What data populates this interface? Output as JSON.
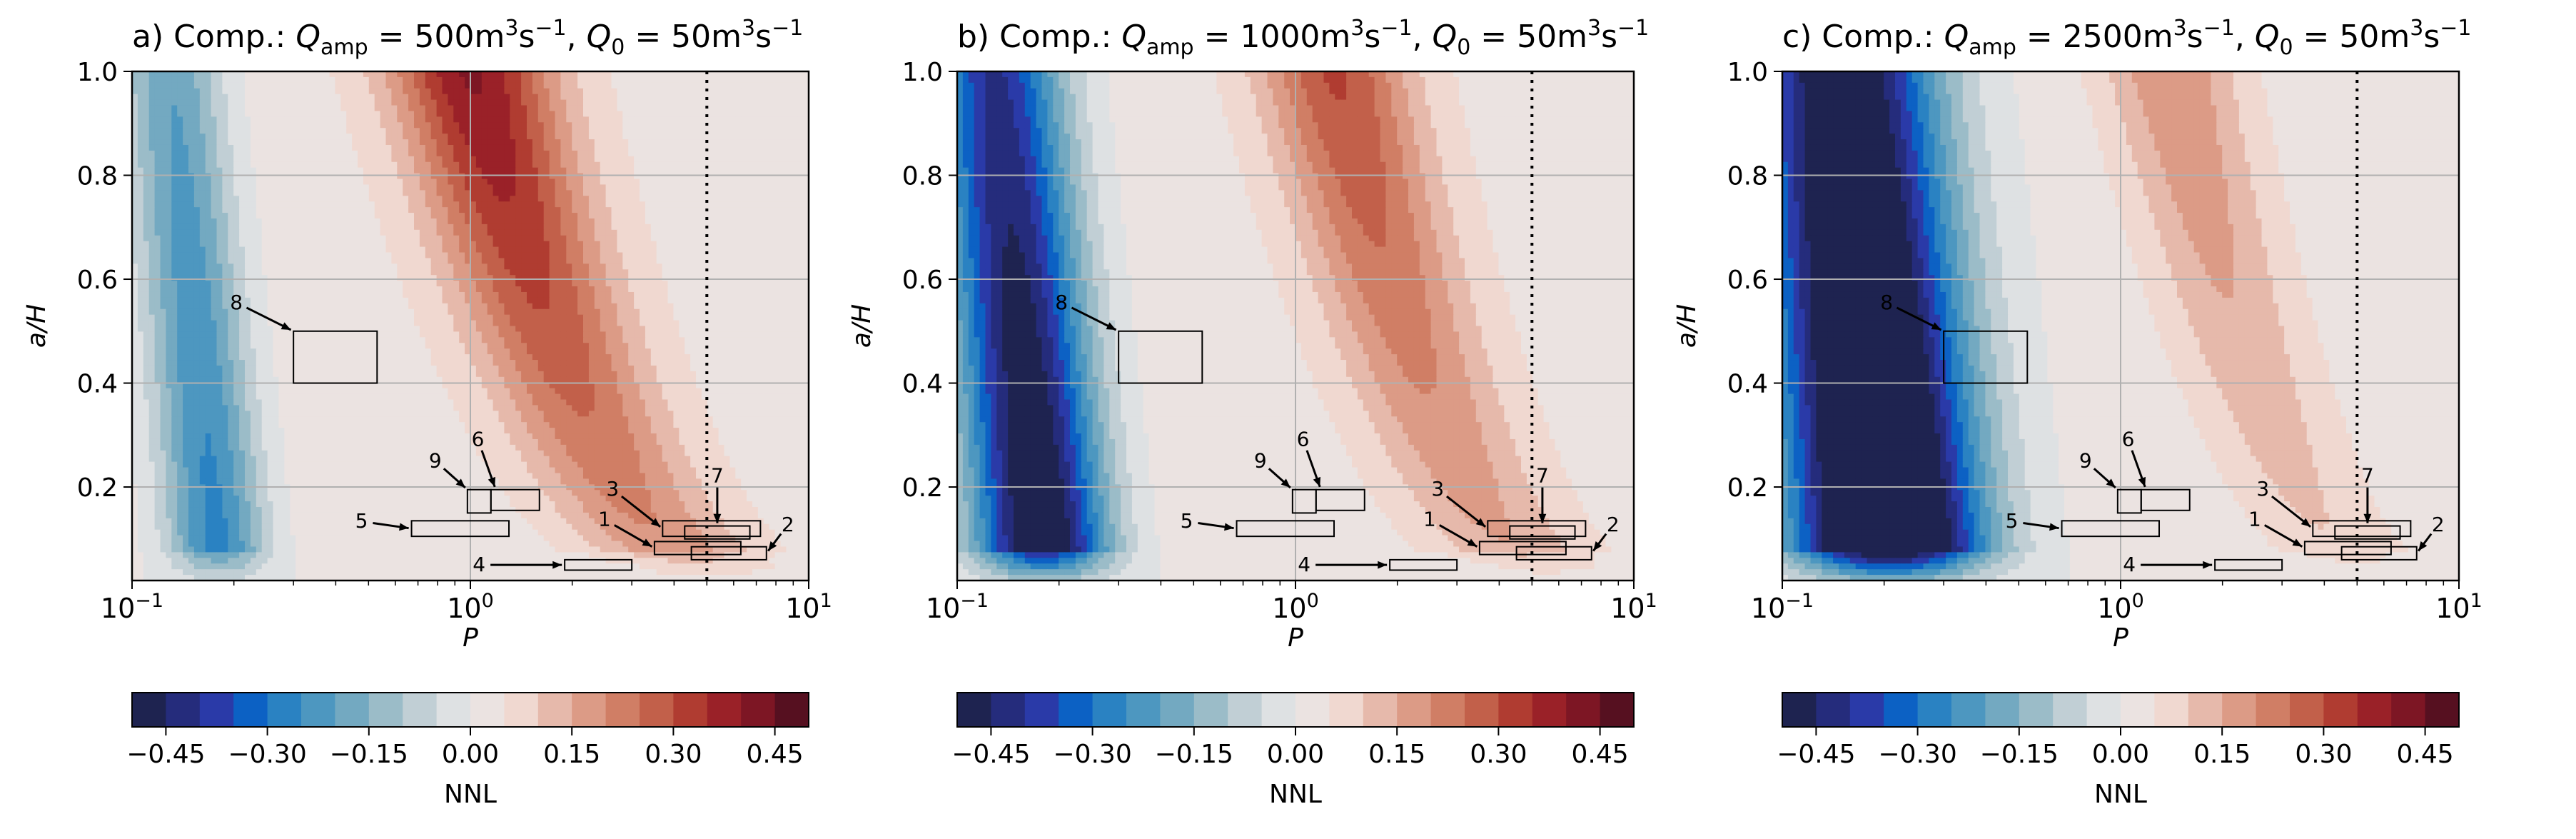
{
  "chart_data": [
    {
      "type": "contour",
      "title": {
        "prefix": "a) Comp.: ",
        "q_amp": "500",
        "q0": "50"
      },
      "xlabel": "P",
      "ylabel": "a/H",
      "x_scale": "log",
      "xlim": [
        0.1,
        10
      ],
      "ylim": [
        0.02,
        1.0
      ],
      "x_ticks": [
        0.1,
        1,
        10
      ],
      "y_ticks": [
        "0.2",
        "0.4",
        "0.6",
        "0.8",
        "1.0"
      ],
      "grid": true,
      "dotted_vline_x": 5.0,
      "field": {
        "neg_ridge_P": 0.13,
        "neg_amp": -0.3,
        "neg_width": 0.15,
        "pos_amp": 0.38,
        "pos_ridge_at_top": 1.0,
        "pos_ridge_at_bottom": 5.0,
        "pos_width": 0.24,
        "bg_pos": 0.03,
        "bottom_cut": 0.07
      },
      "boxes": [
        {
          "label": "1",
          "P": [
            3.5,
            6.3
          ],
          "aH": [
            0.07,
            0.095
          ]
        },
        {
          "label": "2",
          "P": [
            4.5,
            7.5
          ],
          "aH": [
            0.06,
            0.085
          ]
        },
        {
          "label": "3",
          "P": [
            3.7,
            7.2
          ],
          "aH": [
            0.105,
            0.135
          ]
        },
        {
          "label": "4",
          "P": [
            1.9,
            3.0
          ],
          "aH": [
            0.04,
            0.06
          ]
        },
        {
          "label": "5",
          "P": [
            0.67,
            1.3
          ],
          "aH": [
            0.105,
            0.135
          ]
        },
        {
          "label": "6",
          "P": [
            1.15,
            1.6
          ],
          "aH": [
            0.155,
            0.195
          ]
        },
        {
          "label": "7",
          "P": [
            4.3,
            6.7
          ],
          "aH": [
            0.1,
            0.125
          ]
        },
        {
          "label": "8",
          "P": [
            0.3,
            0.53
          ],
          "aH": [
            0.4,
            0.5
          ]
        },
        {
          "label": "9",
          "P": [
            0.98,
            1.15
          ],
          "aH": [
            0.15,
            0.195
          ]
        }
      ],
      "colorbar": {
        "label": "NNL",
        "ticks": [
          "−0.45",
          "−0.30",
          "−0.15",
          "0.00",
          "0.15",
          "0.30",
          "0.45"
        ]
      }
    },
    {
      "type": "contour",
      "title": {
        "prefix": "b) Comp.: ",
        "q_amp": "1000",
        "q0": "50"
      },
      "xlabel": "P",
      "ylabel": "a/H",
      "x_scale": "log",
      "xlim": [
        0.1,
        10
      ],
      "ylim": [
        0.02,
        1.0
      ],
      "x_ticks": [
        0.1,
        1,
        10
      ],
      "y_ticks": [
        "0.2",
        "0.4",
        "0.6",
        "0.8",
        "1.0"
      ],
      "grid": true,
      "dotted_vline_x": 5.0,
      "field": {
        "neg_ridge_P": 0.13,
        "neg_amp": -0.58,
        "neg_width": 0.2,
        "pos_amp": 0.28,
        "pos_ridge_at_top": 1.3,
        "pos_ridge_at_bottom": 5.5,
        "pos_width": 0.22,
        "bg_pos": 0.03,
        "bottom_cut": 0.07
      },
      "boxes": [
        {
          "label": "1",
          "P": [
            3.5,
            6.3
          ],
          "aH": [
            0.07,
            0.095
          ]
        },
        {
          "label": "2",
          "P": [
            4.5,
            7.5
          ],
          "aH": [
            0.06,
            0.085
          ]
        },
        {
          "label": "3",
          "P": [
            3.7,
            7.2
          ],
          "aH": [
            0.105,
            0.135
          ]
        },
        {
          "label": "4",
          "P": [
            1.9,
            3.0
          ],
          "aH": [
            0.04,
            0.06
          ]
        },
        {
          "label": "5",
          "P": [
            0.67,
            1.3
          ],
          "aH": [
            0.105,
            0.135
          ]
        },
        {
          "label": "6",
          "P": [
            1.15,
            1.6
          ],
          "aH": [
            0.155,
            0.195
          ]
        },
        {
          "label": "7",
          "P": [
            4.3,
            6.7
          ],
          "aH": [
            0.1,
            0.125
          ]
        },
        {
          "label": "8",
          "P": [
            0.3,
            0.53
          ],
          "aH": [
            0.4,
            0.5
          ]
        },
        {
          "label": "9",
          "P": [
            0.98,
            1.15
          ],
          "aH": [
            0.15,
            0.195
          ]
        }
      ],
      "colorbar": {
        "label": "NNL",
        "ticks": [
          "−0.45",
          "−0.30",
          "−0.15",
          "0.00",
          "0.15",
          "0.30",
          "0.45"
        ]
      }
    },
    {
      "type": "contour",
      "title": {
        "prefix": "c) Comp.: ",
        "q_amp": "2500",
        "q0": "50"
      },
      "xlabel": "P",
      "ylabel": "a/H",
      "x_scale": "log",
      "xlim": [
        0.1,
        10
      ],
      "ylim": [
        0.02,
        1.0
      ],
      "x_ticks": [
        0.1,
        1,
        10
      ],
      "y_ticks": [
        "0.2",
        "0.4",
        "0.6",
        "0.8",
        "1.0"
      ],
      "grid": true,
      "dotted_vline_x": 5.0,
      "field": {
        "neg_ridge_P": 0.15,
        "neg_amp": -0.75,
        "neg_width": 0.28,
        "pos_amp": 0.18,
        "pos_ridge_at_top": 1.4,
        "pos_ridge_at_bottom": 5.5,
        "pos_width": 0.2,
        "bg_pos": 0.02,
        "bottom_cut": 0.07
      },
      "boxes": [
        {
          "label": "1",
          "P": [
            3.5,
            6.3
          ],
          "aH": [
            0.07,
            0.095
          ]
        },
        {
          "label": "2",
          "P": [
            4.5,
            7.5
          ],
          "aH": [
            0.06,
            0.085
          ]
        },
        {
          "label": "3",
          "P": [
            3.7,
            7.2
          ],
          "aH": [
            0.105,
            0.135
          ]
        },
        {
          "label": "4",
          "P": [
            1.9,
            3.0
          ],
          "aH": [
            0.04,
            0.06
          ]
        },
        {
          "label": "5",
          "P": [
            0.67,
            1.3
          ],
          "aH": [
            0.105,
            0.135
          ]
        },
        {
          "label": "6",
          "P": [
            1.15,
            1.6
          ],
          "aH": [
            0.155,
            0.195
          ]
        },
        {
          "label": "7",
          "P": [
            4.3,
            6.7
          ],
          "aH": [
            0.1,
            0.125
          ]
        },
        {
          "label": "8",
          "P": [
            0.3,
            0.53
          ],
          "aH": [
            0.4,
            0.5
          ]
        },
        {
          "label": "9",
          "P": [
            0.98,
            1.15
          ],
          "aH": [
            0.15,
            0.195
          ]
        }
      ],
      "colorbar": {
        "label": "NNL",
        "ticks": [
          "−0.45",
          "−0.30",
          "−0.15",
          "0.00",
          "0.15",
          "0.30",
          "0.45"
        ]
      }
    }
  ],
  "colormap": {
    "levels_min": -0.5,
    "levels_max": 0.5,
    "step": 0.05,
    "colors": [
      "#1e2350",
      "#252c7c",
      "#2a3aa8",
      "#0c61c4",
      "#2a82c2",
      "#4d97c0",
      "#73a9c1",
      "#9bbcc8",
      "#c1cfd5",
      "#dee1e3",
      "#ebe3e1",
      "#f0d8d0",
      "#e6b9ab",
      "#dc9b86",
      "#d07e65",
      "#c2604a",
      "#b03c31",
      "#9a2128",
      "#7d1624",
      "#561020"
    ]
  }
}
